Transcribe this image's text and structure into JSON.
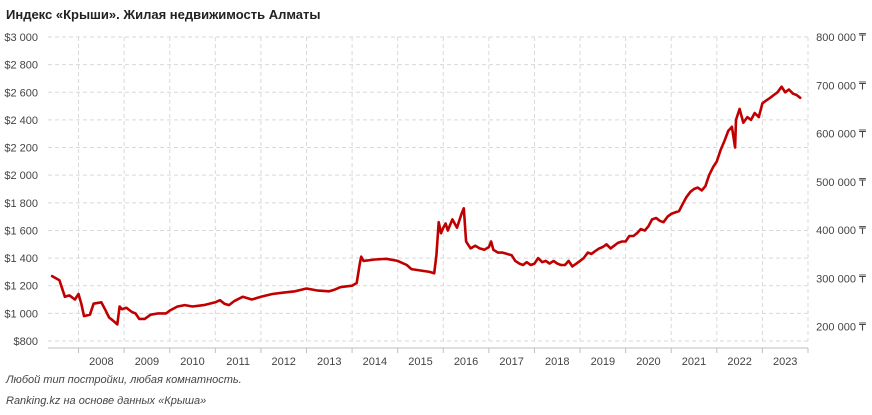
{
  "chart_data": {
    "type": "line",
    "title": "Индекс «Крыши». Жилая недвижимость Алматы",
    "series": [
      {
        "axis": "left",
        "color": "#c00000",
        "points": [
          [
            2007.42,
            1270
          ],
          [
            2007.58,
            1240
          ],
          [
            2007.7,
            1120
          ],
          [
            2007.8,
            1130
          ],
          [
            2007.92,
            1100
          ],
          [
            2008.0,
            1140
          ],
          [
            2008.06,
            1070
          ],
          [
            2008.12,
            980
          ],
          [
            2008.25,
            990
          ],
          [
            2008.33,
            1070
          ],
          [
            2008.5,
            1080
          ],
          [
            2008.58,
            1030
          ],
          [
            2008.67,
            970
          ],
          [
            2008.75,
            950
          ],
          [
            2008.85,
            920
          ],
          [
            2008.9,
            1050
          ],
          [
            2008.95,
            1030
          ],
          [
            2009.05,
            1040
          ],
          [
            2009.17,
            1010
          ],
          [
            2009.25,
            1000
          ],
          [
            2009.33,
            960
          ],
          [
            2009.45,
            960
          ],
          [
            2009.58,
            990
          ],
          [
            2009.75,
            1000
          ],
          [
            2009.92,
            1000
          ],
          [
            2010.0,
            1020
          ],
          [
            2010.17,
            1050
          ],
          [
            2010.33,
            1060
          ],
          [
            2010.5,
            1050
          ],
          [
            2010.75,
            1060
          ],
          [
            2011.0,
            1080
          ],
          [
            2011.1,
            1095
          ],
          [
            2011.2,
            1070
          ],
          [
            2011.3,
            1060
          ],
          [
            2011.42,
            1090
          ],
          [
            2011.6,
            1120
          ],
          [
            2011.8,
            1100
          ],
          [
            2012.0,
            1120
          ],
          [
            2012.25,
            1140
          ],
          [
            2012.5,
            1150
          ],
          [
            2012.75,
            1160
          ],
          [
            2013.0,
            1180
          ],
          [
            2013.25,
            1165
          ],
          [
            2013.5,
            1160
          ],
          [
            2013.6,
            1170
          ],
          [
            2013.75,
            1190
          ],
          [
            2014.0,
            1200
          ],
          [
            2014.1,
            1220
          ],
          [
            2014.17,
            1360
          ],
          [
            2014.2,
            1410
          ],
          [
            2014.25,
            1380
          ],
          [
            2014.5,
            1390
          ],
          [
            2014.75,
            1395
          ],
          [
            2015.0,
            1380
          ],
          [
            2015.2,
            1350
          ],
          [
            2015.3,
            1320
          ],
          [
            2015.5,
            1310
          ],
          [
            2015.7,
            1300
          ],
          [
            2015.8,
            1290
          ],
          [
            2015.85,
            1420
          ],
          [
            2015.9,
            1660
          ],
          [
            2015.95,
            1580
          ],
          [
            2016.0,
            1620
          ],
          [
            2016.05,
            1650
          ],
          [
            2016.1,
            1600
          ],
          [
            2016.2,
            1680
          ],
          [
            2016.3,
            1620
          ],
          [
            2016.4,
            1720
          ],
          [
            2016.45,
            1760
          ],
          [
            2016.5,
            1520
          ],
          [
            2016.6,
            1470
          ],
          [
            2016.7,
            1490
          ],
          [
            2016.8,
            1470
          ],
          [
            2016.9,
            1460
          ],
          [
            2017.0,
            1480
          ],
          [
            2017.05,
            1520
          ],
          [
            2017.1,
            1460
          ],
          [
            2017.2,
            1440
          ],
          [
            2017.3,
            1440
          ],
          [
            2017.4,
            1430
          ],
          [
            2017.5,
            1420
          ],
          [
            2017.58,
            1380
          ],
          [
            2017.67,
            1360
          ],
          [
            2017.75,
            1350
          ],
          [
            2017.83,
            1370
          ],
          [
            2017.92,
            1350
          ],
          [
            2018.0,
            1360
          ],
          [
            2018.08,
            1400
          ],
          [
            2018.17,
            1370
          ],
          [
            2018.25,
            1380
          ],
          [
            2018.33,
            1360
          ],
          [
            2018.42,
            1380
          ],
          [
            2018.5,
            1360
          ],
          [
            2018.58,
            1350
          ],
          [
            2018.67,
            1350
          ],
          [
            2018.75,
            1380
          ],
          [
            2018.83,
            1340
          ],
          [
            2018.92,
            1360
          ],
          [
            2019.0,
            1380
          ],
          [
            2019.08,
            1400
          ],
          [
            2019.17,
            1440
          ],
          [
            2019.25,
            1430
          ],
          [
            2019.33,
            1450
          ],
          [
            2019.42,
            1470
          ],
          [
            2019.5,
            1480
          ],
          [
            2019.58,
            1500
          ],
          [
            2019.67,
            1470
          ],
          [
            2019.75,
            1490
          ],
          [
            2019.83,
            1510
          ],
          [
            2019.92,
            1520
          ],
          [
            2020.0,
            1520
          ],
          [
            2020.08,
            1560
          ],
          [
            2020.17,
            1560
          ],
          [
            2020.25,
            1580
          ],
          [
            2020.33,
            1610
          ],
          [
            2020.42,
            1600
          ],
          [
            2020.5,
            1630
          ],
          [
            2020.58,
            1680
          ],
          [
            2020.67,
            1690
          ],
          [
            2020.75,
            1670
          ],
          [
            2020.83,
            1660
          ],
          [
            2020.92,
            1700
          ],
          [
            2021.0,
            1720
          ],
          [
            2021.08,
            1730
          ],
          [
            2021.17,
            1740
          ],
          [
            2021.25,
            1790
          ],
          [
            2021.33,
            1840
          ],
          [
            2021.42,
            1880
          ],
          [
            2021.5,
            1900
          ],
          [
            2021.58,
            1910
          ],
          [
            2021.67,
            1890
          ],
          [
            2021.75,
            1920
          ],
          [
            2021.83,
            2000
          ],
          [
            2021.92,
            2060
          ],
          [
            2022.0,
            2100
          ],
          [
            2022.08,
            2180
          ],
          [
            2022.17,
            2250
          ],
          [
            2022.25,
            2320
          ],
          [
            2022.33,
            2350
          ],
          [
            2022.4,
            2200
          ],
          [
            2022.42,
            2400
          ],
          [
            2022.5,
            2480
          ],
          [
            2022.58,
            2380
          ],
          [
            2022.67,
            2420
          ],
          [
            2022.75,
            2400
          ],
          [
            2022.83,
            2450
          ],
          [
            2022.92,
            2420
          ],
          [
            2023.0,
            2520
          ],
          [
            2023.08,
            2540
          ],
          [
            2023.17,
            2560
          ],
          [
            2023.25,
            2580
          ],
          [
            2023.33,
            2600
          ],
          [
            2023.42,
            2640
          ],
          [
            2023.5,
            2600
          ],
          [
            2023.58,
            2620
          ],
          [
            2023.67,
            2590
          ],
          [
            2023.75,
            2580
          ],
          [
            2023.83,
            2560
          ]
        ]
      }
    ],
    "x_ticks": [
      {
        "value": 2008.5,
        "label": "2008"
      },
      {
        "value": 2009.5,
        "label": "2009"
      },
      {
        "value": 2010.5,
        "label": "2010"
      },
      {
        "value": 2011.5,
        "label": "2011"
      },
      {
        "value": 2012.5,
        "label": "2012"
      },
      {
        "value": 2013.5,
        "label": "2013"
      },
      {
        "value": 2014.5,
        "label": "2014"
      },
      {
        "value": 2015.5,
        "label": "2015"
      },
      {
        "value": 2016.5,
        "label": "2016"
      },
      {
        "value": 2017.5,
        "label": "2017"
      },
      {
        "value": 2018.5,
        "label": "2018"
      },
      {
        "value": 2019.5,
        "label": "2019"
      },
      {
        "value": 2020.5,
        "label": "2020"
      },
      {
        "value": 2021.5,
        "label": "2021"
      },
      {
        "value": 2022.5,
        "label": "2022"
      },
      {
        "value": 2023.5,
        "label": "2023"
      }
    ],
    "xlim": [
      2007.33,
      2024.0
    ],
    "left_axis": {
      "ylim": [
        800,
        3000
      ],
      "ticks": [
        {
          "value": 800,
          "label": "$800"
        },
        {
          "value": 1000,
          "label": "$1 000"
        },
        {
          "value": 1200,
          "label": "$1 200"
        },
        {
          "value": 1400,
          "label": "$1 400"
        },
        {
          "value": 1600,
          "label": "$1 600"
        },
        {
          "value": 1800,
          "label": "$1 800"
        },
        {
          "value": 2000,
          "label": "$2 000"
        },
        {
          "value": 2200,
          "label": "$2 200"
        },
        {
          "value": 2400,
          "label": "$2 400"
        },
        {
          "value": 2600,
          "label": "$2 600"
        },
        {
          "value": 2800,
          "label": "$2 800"
        },
        {
          "value": 3000,
          "label": "$3 000"
        }
      ]
    },
    "right_axis": {
      "ylim": [
        170000,
        800000
      ],
      "ticks": [
        {
          "value": 200000,
          "label": "200 000 ₸"
        },
        {
          "value": 300000,
          "label": "300 000 ₸"
        },
        {
          "value": 400000,
          "label": "400 000 ₸"
        },
        {
          "value": 500000,
          "label": "500 000 ₸"
        },
        {
          "value": 600000,
          "label": "600 000 ₸"
        },
        {
          "value": 700000,
          "label": "700 000 ₸"
        },
        {
          "value": 800000,
          "label": "800 000 ₸"
        }
      ]
    },
    "grid": true,
    "legend": "none"
  },
  "footer": {
    "note": "Любой тип постройки, любая комнатность.",
    "source": "Ranking.kz на основе данных «Крыша»"
  }
}
